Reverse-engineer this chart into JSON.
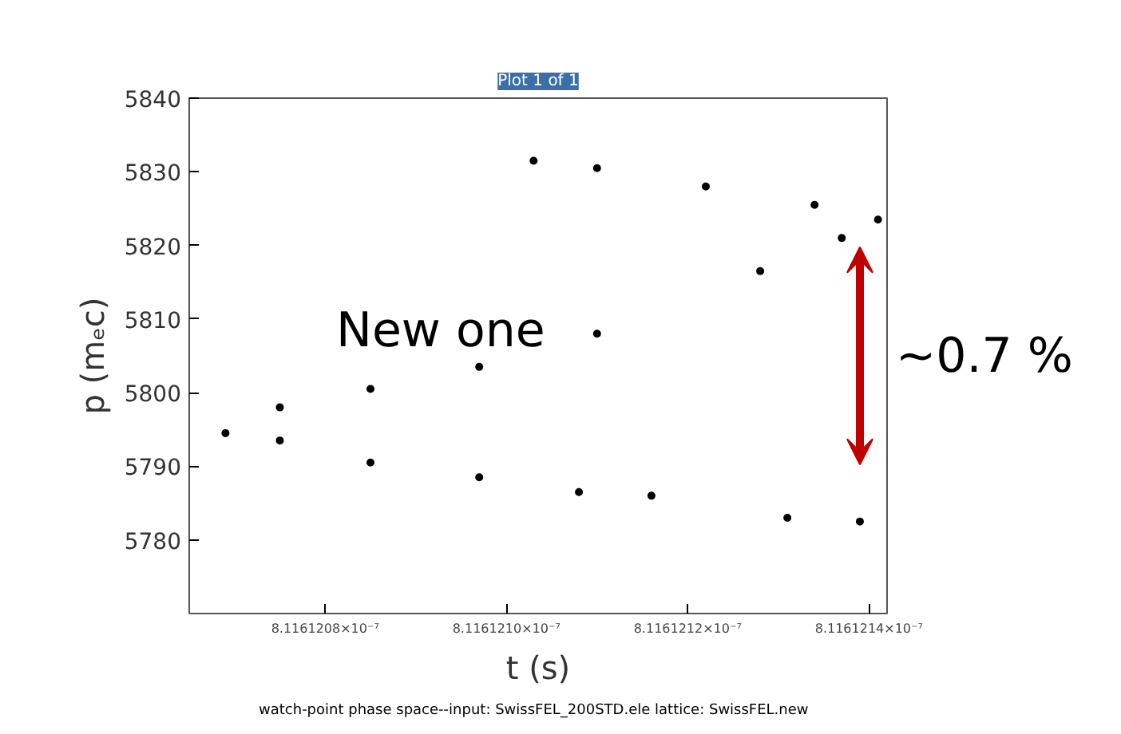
{
  "chart_data": {
    "type": "scatter",
    "title": "Plot 1 of 1",
    "xlabel": "t (s)",
    "ylabel": "p (mₑc)",
    "x": [
      8.1161211e-07,
      8.11612122e-07,
      8.11612134e-07,
      8.11612141e-07,
      8.11612137e-07,
      8.11612128e-07,
      8.1161211e-07,
      8.11612097e-07,
      8.11612085e-07,
      8.11612075e-07,
      8.11612069e-07,
      8.11612075e-07,
      8.11612085e-07,
      8.11612097e-07,
      8.11612108e-07,
      8.11612116e-07,
      8.11612131e-07,
      8.11612139e-07,
      8.11612103e-07
    ],
    "series": [
      {
        "color": "#000000",
        "values": [
          5830.5,
          5828.0,
          5825.5,
          5823.5,
          5821.0,
          5816.5,
          5808.0,
          5803.5,
          5800.5,
          5798.0,
          5794.5,
          5793.5,
          5790.5,
          5788.5,
          5786.5,
          5786.0,
          5783.0,
          5782.5,
          5831.5
        ]
      }
    ],
    "xlim": [
      8.11612065e-07,
      8.11612142e-07
    ],
    "xticks": [
      {
        "value": 8.1161208e-07,
        "label": "8.1161208×10⁻⁷"
      },
      {
        "value": 8.116121e-07,
        "label": "8.1161210×10⁻⁷"
      },
      {
        "value": 8.1161212e-07,
        "label": "8.1161212×10⁻⁷"
      },
      {
        "value": 8.1161214e-07,
        "label": "8.1161214×10⁻⁷"
      }
    ],
    "ylim": [
      5770,
      5840
    ],
    "yticks": [
      5780,
      5790,
      5800,
      5810,
      5820,
      5830,
      5840
    ],
    "marker": "circle",
    "grid": false,
    "annotations": [
      "New one",
      "~0.7 %",
      "watch-point phase space--input: SwissFEL_200STD.ele   lattice: SwissFEL.new"
    ]
  }
}
